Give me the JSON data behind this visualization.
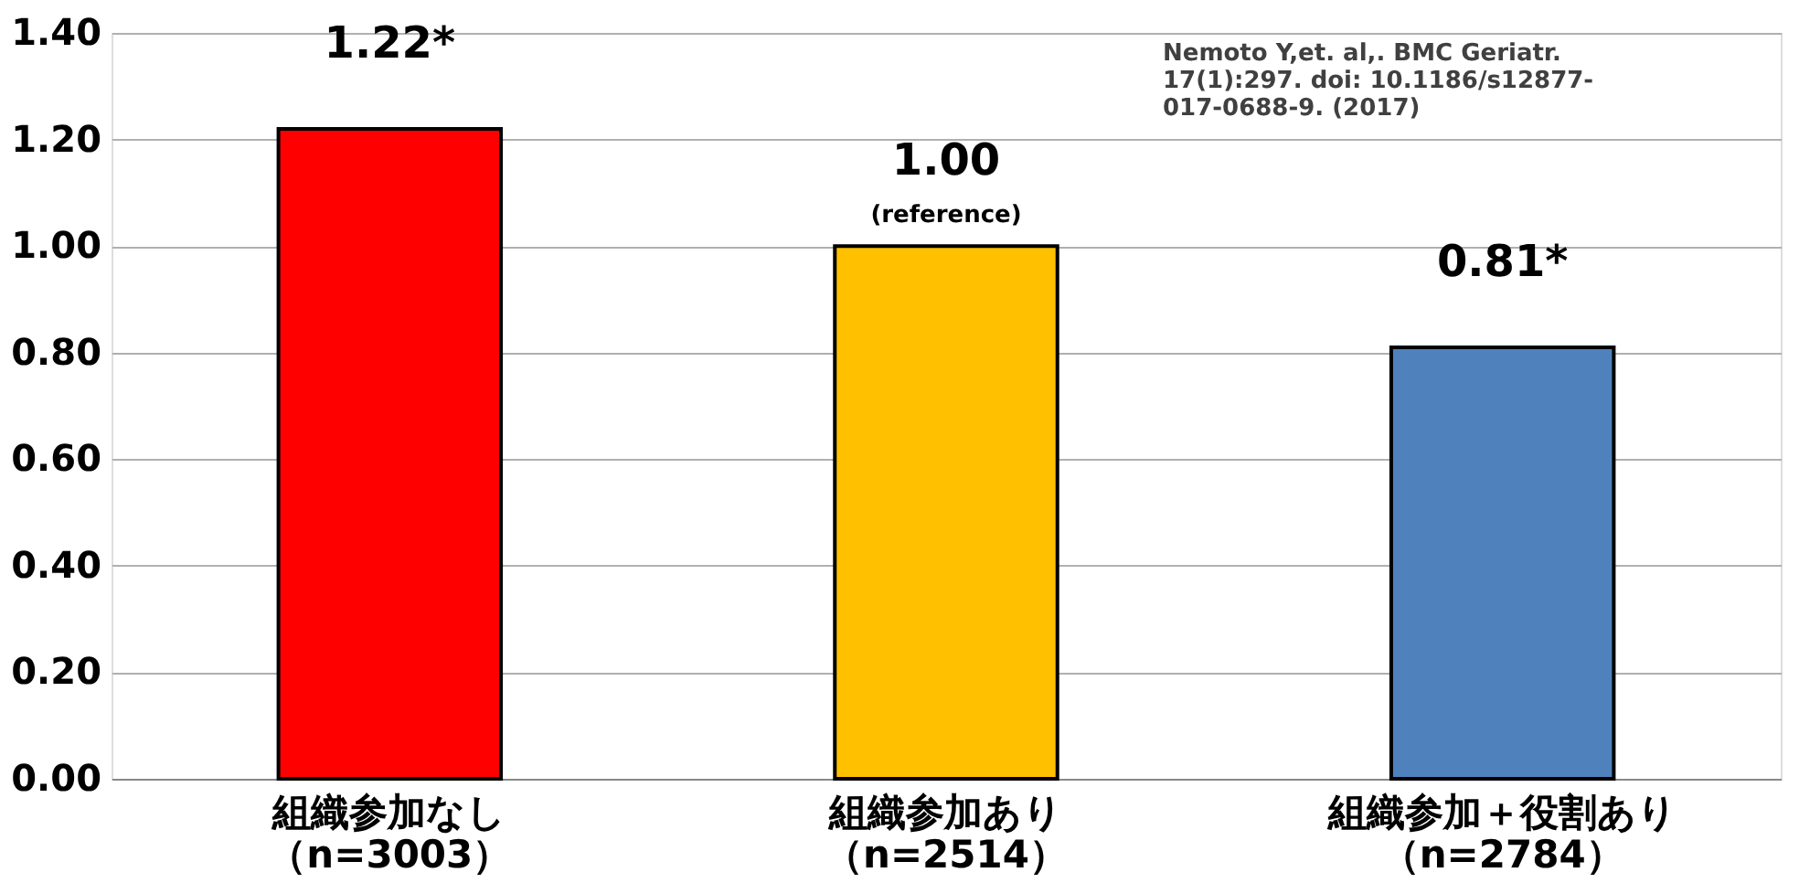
{
  "chart_data": {
    "type": "bar",
    "categories": [
      "組織参加なし（n=3003）",
      "組織参加あり（n=2514）",
      "組織参加＋役割あり（n=2784）"
    ],
    "values": [
      1.22,
      1.0,
      0.81
    ],
    "colors": [
      "#ff0000",
      "#ffc000",
      "#4f81bd"
    ],
    "value_labels": [
      "1.22*",
      "1.00",
      "0.81*"
    ],
    "ylim": [
      0,
      1.4
    ],
    "yticks": [
      {
        "value": 0,
        "label": "0.00"
      },
      {
        "value": 0.2,
        "label": "0.20"
      },
      {
        "value": 0.4,
        "label": "0.40"
      },
      {
        "value": 0.6,
        "label": "0.60"
      },
      {
        "value": 0.8,
        "label": "0.80"
      },
      {
        "value": 1.0,
        "label": "1.00"
      },
      {
        "value": 1.2,
        "label": "1.20"
      },
      {
        "value": 1.4,
        "label": "1.40"
      }
    ],
    "grid": "y",
    "annotations": [
      {
        "text": "(reference)",
        "x": "組織参加あり（n=2514）",
        "y": 1.0
      },
      "Nemoto Y,et. al,. BMC Geriatr.\n17(1):297.         doi: 10.1186/s12877-\n017-0688-9. (2017)"
    ]
  }
}
